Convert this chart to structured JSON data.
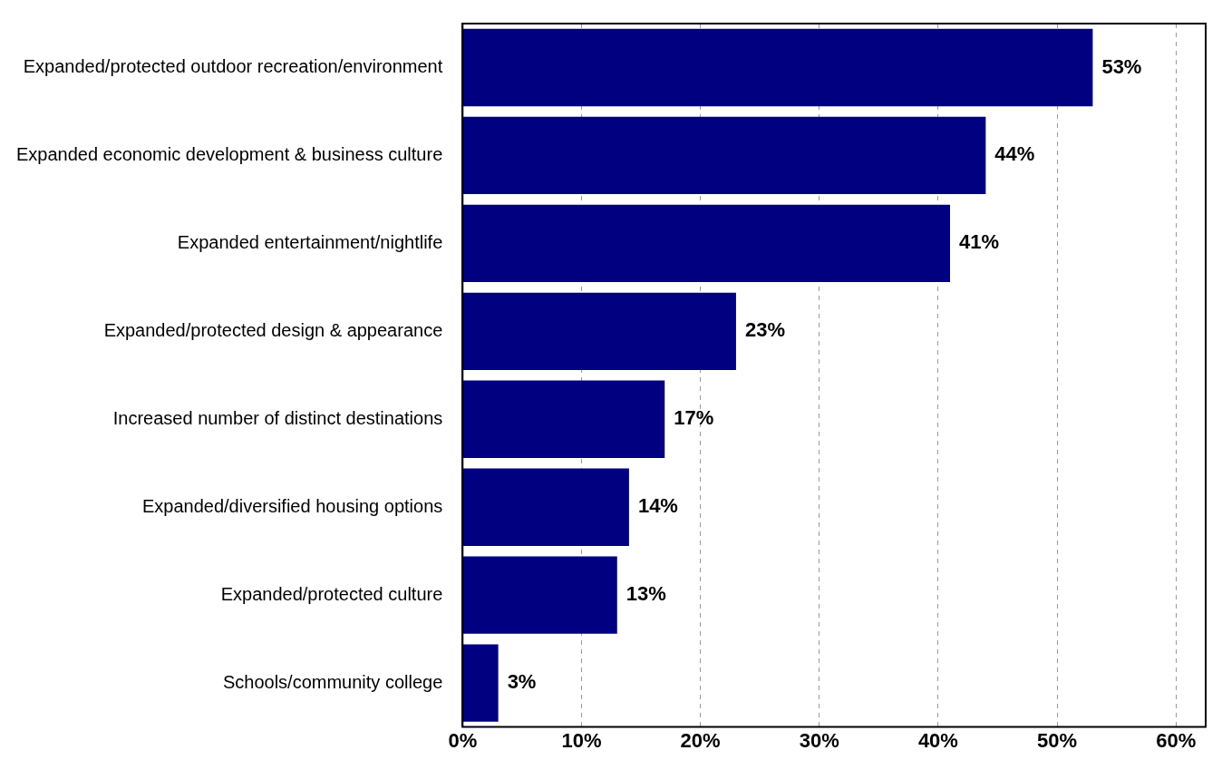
{
  "chart_data": {
    "type": "bar",
    "orientation": "horizontal",
    "categories": [
      "Expanded/protected outdoor recreation/environment",
      "Expanded economic development & business culture",
      "Expanded entertainment/nightlife",
      "Expanded/protected design & appearance",
      "Increased number of distinct destinations",
      "Expanded/diversified housing options",
      "Expanded/protected culture",
      "Schools/community college"
    ],
    "values": [
      53,
      44,
      41,
      23,
      17,
      14,
      13,
      3
    ],
    "value_labels": [
      "53%",
      "44%",
      "41%",
      "23%",
      "17%",
      "14%",
      "13%",
      "3%"
    ],
    "color": "#000080",
    "xlim": [
      0,
      62.5
    ],
    "xticks": [
      {
        "value": 0,
        "label": "0%"
      },
      {
        "value": 10,
        "label": "10%"
      },
      {
        "value": 20,
        "label": "20%"
      },
      {
        "value": 30,
        "label": "30%"
      },
      {
        "value": 40,
        "label": "40%"
      },
      {
        "value": 50,
        "label": "50%"
      },
      {
        "value": 60,
        "label": "60%"
      }
    ],
    "grid": "x",
    "legend": false
  }
}
